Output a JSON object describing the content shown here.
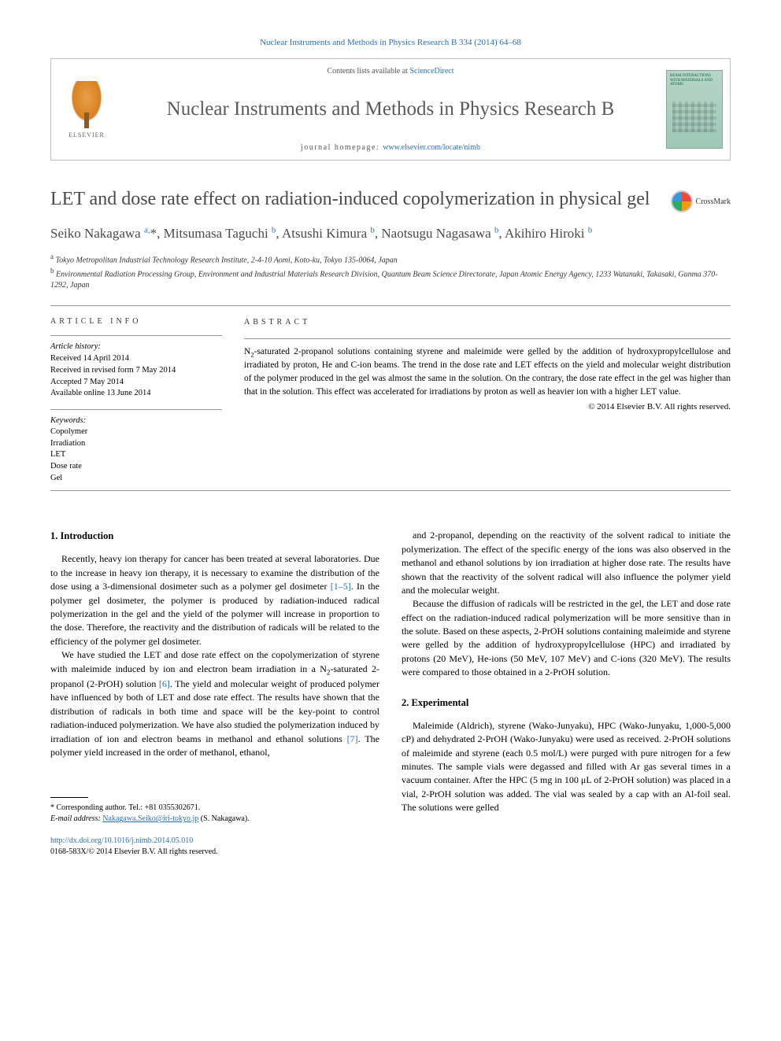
{
  "top_reference": "Nuclear Instruments and Methods in Physics Research B 334 (2014) 64–68",
  "banner": {
    "contents_prefix": "Contents lists available at ",
    "contents_link": "ScienceDirect",
    "journal_name": "Nuclear Instruments and Methods in Physics Research B",
    "homepage_prefix": "journal homepage: ",
    "homepage_url": "www.elsevier.com/locate/nimb",
    "publisher": "ELSEVIER",
    "cover_text": "BEAM INTERACTIONS WITH MATERIALS AND ATOMS"
  },
  "article": {
    "title": "LET and dose rate effect on radiation-induced copolymerization in physical gel",
    "crossmark": "CrossMark"
  },
  "authors_html": "Seiko Nakagawa <sup>a,</sup>*, Mitsumasa Taguchi <sup>b</sup>, Atsushi Kimura <sup>b</sup>, Naotsugu Nagasawa <sup>b</sup>, Akihiro Hiroki <sup>b</sup>",
  "affiliations": [
    {
      "sup": "a",
      "text": "Tokyo Metropolitan Industrial Technology Research Institute, 2-4-10 Aomi, Koto-ku, Tokyo 135-0064, Japan"
    },
    {
      "sup": "b",
      "text": "Environmental Radiation Processing Group, Environment and Industrial Materials Research Division, Quantum Beam Science Directorate, Japan Atomic Energy Agency, 1233 Watanuki, Takasaki, Gunma 370-1292, Japan"
    }
  ],
  "info": {
    "label": "ARTICLE INFO",
    "history_label": "Article history:",
    "history": [
      "Received 14 April 2014",
      "Received in revised form 7 May 2014",
      "Accepted 7 May 2014",
      "Available online 13 June 2014"
    ],
    "keywords_label": "Keywords:",
    "keywords": [
      "Copolymer",
      "Irradiation",
      "LET",
      "Dose rate",
      "Gel"
    ]
  },
  "abstract": {
    "label": "ABSTRACT",
    "text": "N₂-saturated 2-propanol solutions containing styrene and maleimide were gelled by the addition of hydroxypropylcellulose and irradiated by proton, He and C-ion beams. The trend in the dose rate and LET effects on the yield and molecular weight distribution of the polymer produced in the gel was almost the same in the solution. On the contrary, the dose rate effect in the gel was higher than that in the solution. This effect was accelerated for irradiations by proton as well as heavier ion with a higher LET value.",
    "copyright": "© 2014 Elsevier B.V. All rights reserved."
  },
  "body": {
    "col1": {
      "h1": "1. Introduction",
      "p1": "Recently, heavy ion therapy for cancer has been treated at several laboratories. Due to the increase in heavy ion therapy, it is necessary to examine the distribution of the dose using a 3-dimensional dosimeter such as a polymer gel dosimeter [1–5]. In the polymer gel dosimeter, the polymer is produced by radiation-induced radical polymerization in the gel and the yield of the polymer will increase in proportion to the dose. Therefore, the reactivity and the distribution of radicals will be related to the efficiency of the polymer gel dosimeter.",
      "p2": "We have studied the LET and dose rate effect on the copolymerization of styrene with maleimide induced by ion and electron beam irradiation in a N₂-saturated 2-propanol (2-PrOH) solution [6]. The yield and molecular weight of produced polymer have influenced by both of LET and dose rate effect. The results have shown that the distribution of radicals in both time and space will be the key-point to control radiation-induced polymerization. We have also studied the polymerization induced by irradiation of ion and electron beams in methanol and ethanol solutions [7]. The polymer yield increased in the order of methanol, ethanol,"
    },
    "col2": {
      "p1": "and 2-propanol, depending on the reactivity of the solvent radical to initiate the polymerization. The effect of the specific energy of the ions was also observed in the methanol and ethanol solutions by ion irradiation at higher dose rate. The results have shown that the reactivity of the solvent radical will also influence the polymer yield and the molecular weight.",
      "p2": "Because the diffusion of radicals will be restricted in the gel, the LET and dose rate effect on the radiation-induced radical polymerization will be more sensitive than in the solute. Based on these aspects, 2-PrOH solutions containing maleimide and styrene were gelled by the addition of hydroxypropylcellulose (HPC) and irradiated by protons (20 MeV), He-ions (50 MeV, 107 MeV) and C-ions (320 MeV). The results were compared to those obtained in a 2-PrOH solution.",
      "h2": "2. Experimental",
      "p3": "Maleimide (Aldrich), styrene (Wako-Junyaku), HPC (Wako-Junyaku, 1,000-5,000 cP) and dehydrated 2-PrOH (Wako-Junyaku) were used as received. 2-PrOH solutions of maleimide and styrene (each 0.5 mol/L) were purged with pure nitrogen for a few minutes. The sample vials were degassed and filled with Ar gas several times in a vacuum container. After the HPC (5 mg in 100 μL of 2-PrOH solution) was placed in a vial, 2-PrOH solution was added. The vial was sealed by a cap with an Al-foil seal. The solutions were gelled"
    }
  },
  "footnote": {
    "corr": "* Corresponding author. Tel.: +81 0355302671.",
    "email_label": "E-mail address: ",
    "email": "Nakagawa.Seiko@iri-tokyo.jp",
    "email_name": " (S. Nakagawa)."
  },
  "doi": {
    "url": "http://dx.doi.org/10.1016/j.nimb.2014.05.010",
    "issn": "0168-583X/© 2014 Elsevier B.V. All rights reserved."
  }
}
